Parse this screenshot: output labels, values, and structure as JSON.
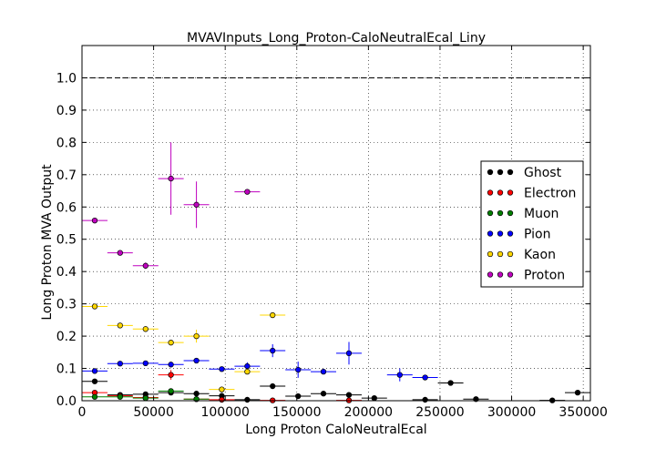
{
  "chart_data": {
    "type": "scatter",
    "title": "MVAVInputs_Long_Proton-CaloNeutralEcal_Liny",
    "xlabel": "Long Proton CaloNeutralEcal",
    "ylabel": "Long Proton MVA Output",
    "xlim": [
      0,
      355000
    ],
    "ylim": [
      0,
      1.1
    ],
    "x_ticks": [
      0,
      50000,
      100000,
      150000,
      200000,
      250000,
      300000,
      350000
    ],
    "x_tick_labels": [
      "0",
      "50000",
      "100000",
      "150000",
      "200000",
      "250000",
      "300000",
      "350000"
    ],
    "y_ticks": [
      0.0,
      0.1,
      0.2,
      0.3,
      0.4,
      0.5,
      0.6,
      0.7,
      0.8,
      0.9,
      1.0
    ],
    "y_tick_labels": [
      "0.0",
      "0.1",
      "0.2",
      "0.3",
      "0.4",
      "0.5",
      "0.6",
      "0.7",
      "0.8",
      "0.9",
      "1.0"
    ],
    "grid": true,
    "reference_line": 1.0,
    "legend_position": "right",
    "series": [
      {
        "name": "Ghost",
        "color": "#000000",
        "points": [
          {
            "x": 8900,
            "y": 0.06,
            "xerr": 8900,
            "yerr": 0.004
          },
          {
            "x": 26600,
            "y": 0.018,
            "xerr": 8900,
            "yerr": 0.002
          },
          {
            "x": 44400,
            "y": 0.02,
            "xerr": 8900,
            "yerr": 0.002
          },
          {
            "x": 62100,
            "y": 0.025,
            "xerr": 8900,
            "yerr": 0.004
          },
          {
            "x": 79900,
            "y": 0.022,
            "xerr": 8900,
            "yerr": 0.004
          },
          {
            "x": 97600,
            "y": 0.015,
            "xerr": 8900,
            "yerr": 0.004
          },
          {
            "x": 115400,
            "y": 0.003,
            "xerr": 8900,
            "yerr": 0.002
          },
          {
            "x": 133100,
            "y": 0.045,
            "xerr": 8900,
            "yerr": 0.007
          },
          {
            "x": 150900,
            "y": 0.014,
            "xerr": 8900,
            "yerr": 0.003
          },
          {
            "x": 168600,
            "y": 0.022,
            "xerr": 8900,
            "yerr": 0.005
          },
          {
            "x": 186400,
            "y": 0.018,
            "xerr": 8900,
            "yerr": 0.004
          },
          {
            "x": 204100,
            "y": 0.008,
            "xerr": 8900,
            "yerr": 0.003
          },
          {
            "x": 239600,
            "y": 0.003,
            "xerr": 8900,
            "yerr": 0.002
          },
          {
            "x": 257400,
            "y": 0.055,
            "xerr": 8900,
            "yerr": 0.004
          },
          {
            "x": 275100,
            "y": 0.005,
            "xerr": 8900,
            "yerr": 0.002
          },
          {
            "x": 328400,
            "y": 0.001,
            "xerr": 8900,
            "yerr": 0.001
          },
          {
            "x": 346100,
            "y": 0.025,
            "xerr": 8900,
            "yerr": 0.004
          }
        ]
      },
      {
        "name": "Electron",
        "color": "#ff0000",
        "points": [
          {
            "x": 8900,
            "y": 0.025,
            "xerr": 8900,
            "yerr": 0.003
          },
          {
            "x": 26600,
            "y": 0.015,
            "xerr": 8900,
            "yerr": 0.002
          },
          {
            "x": 44400,
            "y": 0.01,
            "xerr": 8900,
            "yerr": 0.002
          },
          {
            "x": 62100,
            "y": 0.08,
            "xerr": 8900,
            "yerr": 0.015
          },
          {
            "x": 79900,
            "y": 0.005,
            "xerr": 8900,
            "yerr": 0.003
          },
          {
            "x": 97600,
            "y": 0.003,
            "xerr": 8900,
            "yerr": 0.002
          },
          {
            "x": 133100,
            "y": 0.001,
            "xerr": 8900,
            "yerr": 0.001
          },
          {
            "x": 186400,
            "y": 0.001,
            "xerr": 8900,
            "yerr": 0.001
          }
        ]
      },
      {
        "name": "Muon",
        "color": "#008000",
        "points": [
          {
            "x": 8900,
            "y": 0.012,
            "xerr": 8900,
            "yerr": 0.002
          },
          {
            "x": 26600,
            "y": 0.012,
            "xerr": 8900,
            "yerr": 0.002
          },
          {
            "x": 44400,
            "y": 0.008,
            "xerr": 8900,
            "yerr": 0.002
          },
          {
            "x": 62100,
            "y": 0.03,
            "xerr": 8900,
            "yerr": 0.006
          },
          {
            "x": 79900,
            "y": 0.005,
            "xerr": 8900,
            "yerr": 0.003
          }
        ]
      },
      {
        "name": "Pion",
        "color": "#0000ff",
        "points": [
          {
            "x": 8900,
            "y": 0.092,
            "xerr": 8900,
            "yerr": 0.004
          },
          {
            "x": 26600,
            "y": 0.115,
            "xerr": 8900,
            "yerr": 0.003
          },
          {
            "x": 44400,
            "y": 0.116,
            "xerr": 8900,
            "yerr": 0.003
          },
          {
            "x": 62100,
            "y": 0.112,
            "xerr": 8900,
            "yerr": 0.004
          },
          {
            "x": 79900,
            "y": 0.124,
            "xerr": 8900,
            "yerr": 0.005
          },
          {
            "x": 97600,
            "y": 0.098,
            "xerr": 8900,
            "yerr": 0.006
          },
          {
            "x": 115400,
            "y": 0.107,
            "xerr": 8900,
            "yerr": 0.012
          },
          {
            "x": 133100,
            "y": 0.155,
            "xerr": 8900,
            "yerr": 0.02
          },
          {
            "x": 150900,
            "y": 0.096,
            "xerr": 8900,
            "yerr": 0.025
          },
          {
            "x": 168600,
            "y": 0.09,
            "xerr": 8900,
            "yerr": 0.008
          },
          {
            "x": 186400,
            "y": 0.147,
            "xerr": 8900,
            "yerr": 0.035
          },
          {
            "x": 221900,
            "y": 0.08,
            "xerr": 8900,
            "yerr": 0.02
          },
          {
            "x": 239600,
            "y": 0.072,
            "xerr": 8900,
            "yerr": 0.005
          }
        ]
      },
      {
        "name": "Kaon",
        "color": "#ffd700",
        "points": [
          {
            "x": 8900,
            "y": 0.292,
            "xerr": 8900,
            "yerr": 0.004
          },
          {
            "x": 26600,
            "y": 0.233,
            "xerr": 8900,
            "yerr": 0.004
          },
          {
            "x": 44400,
            "y": 0.222,
            "xerr": 8900,
            "yerr": 0.005
          },
          {
            "x": 62100,
            "y": 0.18,
            "xerr": 8900,
            "yerr": 0.007
          },
          {
            "x": 79900,
            "y": 0.2,
            "xerr": 8900,
            "yerr": 0.02
          },
          {
            "x": 97600,
            "y": 0.035,
            "xerr": 8900,
            "yerr": 0.008
          },
          {
            "x": 115400,
            "y": 0.09,
            "xerr": 8900,
            "yerr": 0.006
          },
          {
            "x": 133100,
            "y": 0.265,
            "xerr": 8900,
            "yerr": 0.005
          }
        ]
      },
      {
        "name": "Proton",
        "color": "#bf00bf",
        "points": [
          {
            "x": 8900,
            "y": 0.558,
            "xerr": 8900,
            "yerr": 0.004
          },
          {
            "x": 26600,
            "y": 0.458,
            "xerr": 8900,
            "yerr": 0.004
          },
          {
            "x": 44400,
            "y": 0.418,
            "xerr": 8900,
            "yerr": 0.01
          },
          {
            "x": 62100,
            "y": 0.688,
            "xerr": 8900,
            "yerr": 0.112
          },
          {
            "x": 79900,
            "y": 0.607,
            "xerr": 8900,
            "yerr": 0.072
          },
          {
            "x": 115400,
            "y": 0.647,
            "xerr": 8900,
            "yerr": 0.005
          }
        ]
      }
    ]
  }
}
